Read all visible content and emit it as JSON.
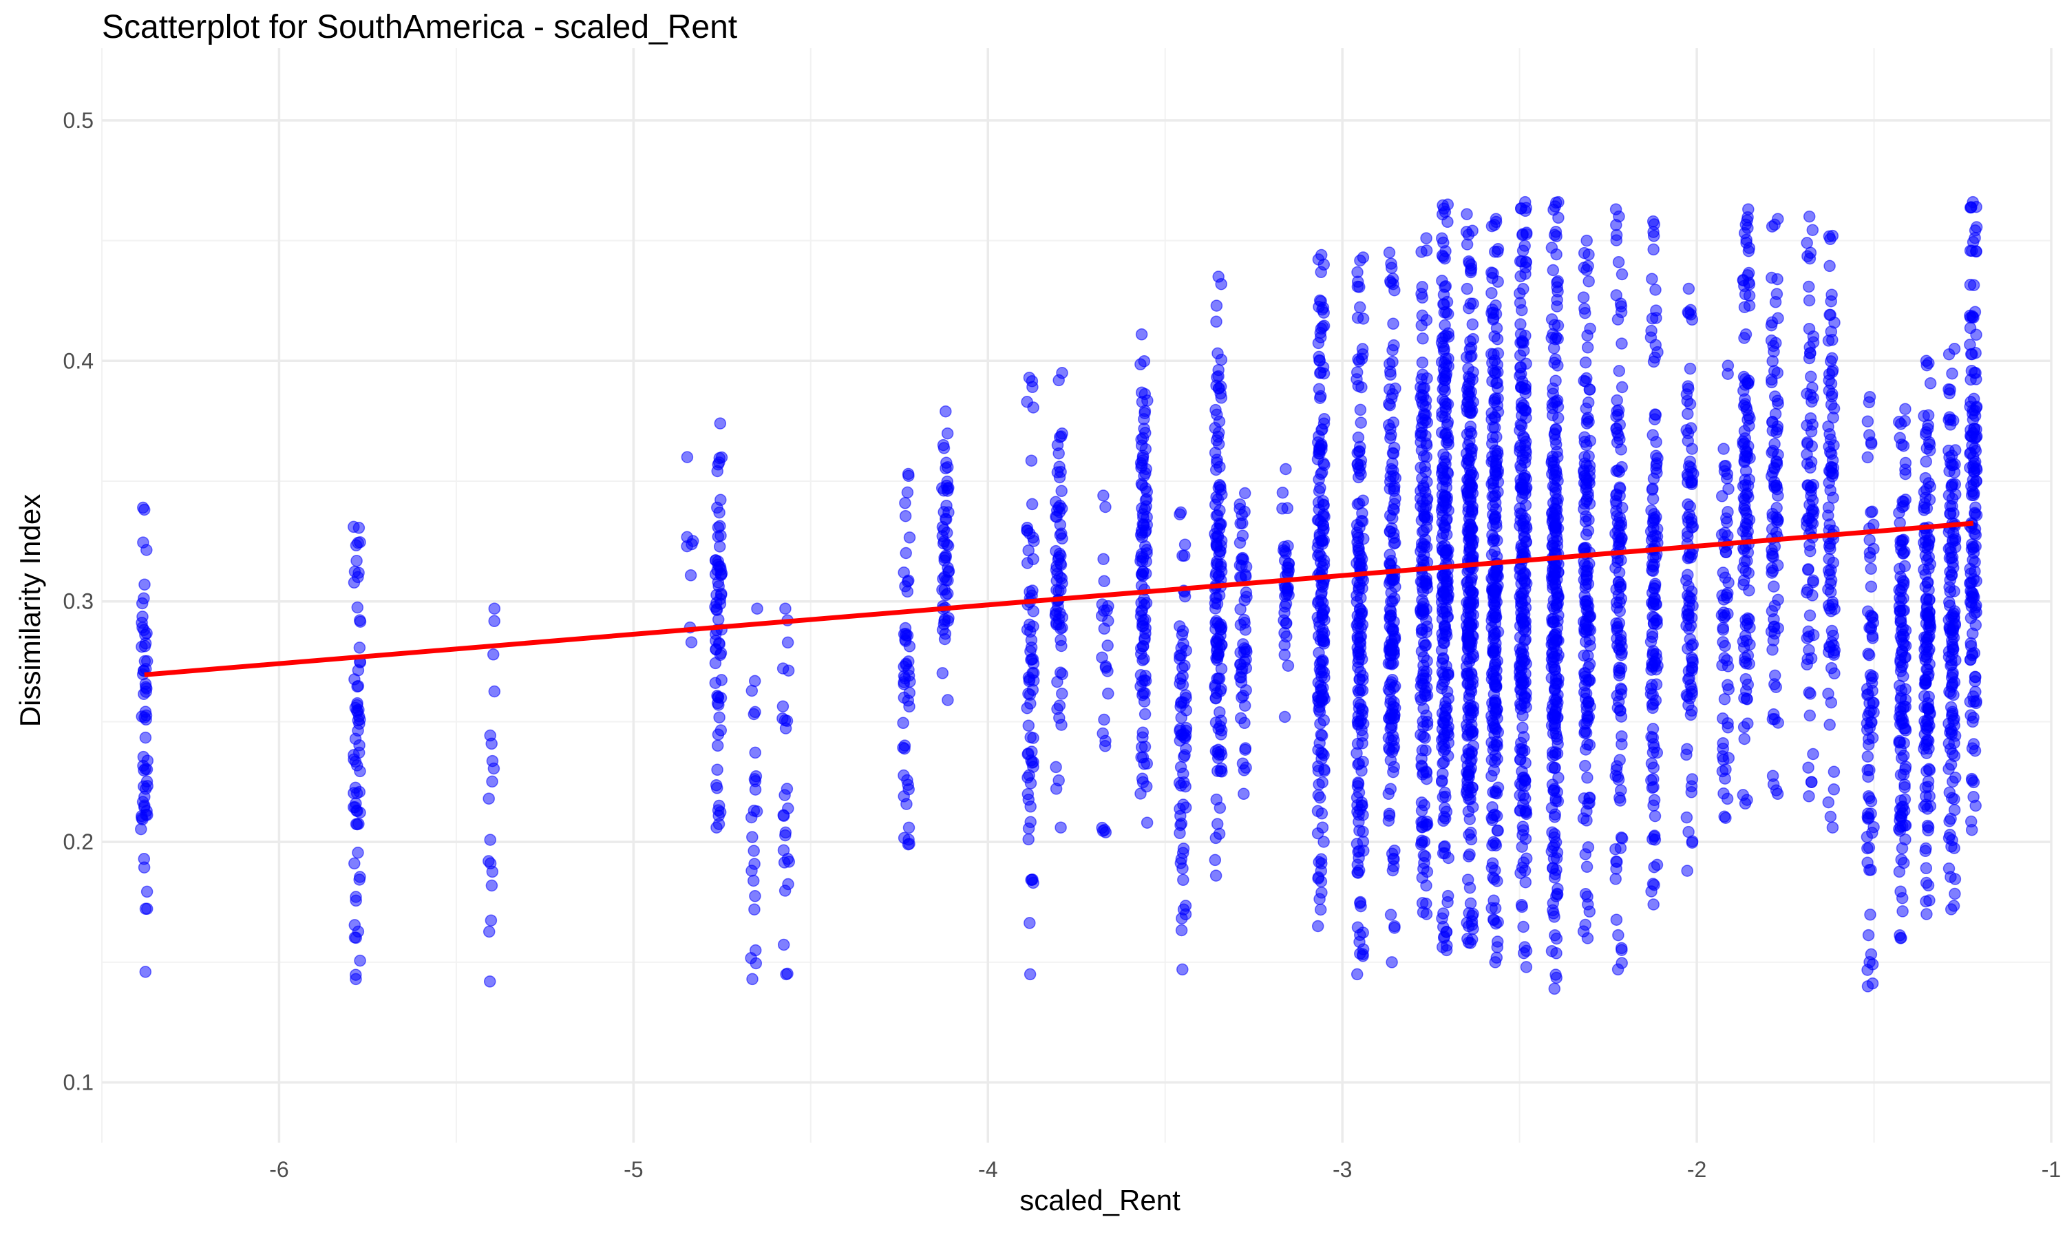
{
  "chart_data": {
    "type": "scatter",
    "title": "Scatterplot for SouthAmerica - scaled_Rent",
    "xlabel": "scaled_Rent",
    "ylabel": "Dissimilarity Index",
    "xlim": [
      -6.5,
      -1.0
    ],
    "ylim": [
      0.075,
      0.53
    ],
    "x_ticks": [
      -6,
      -5,
      -4,
      -3,
      -2,
      -1
    ],
    "x_tick_labels": [
      "-6",
      "-5",
      "-4",
      "-3",
      "-2",
      "-1"
    ],
    "y_ticks": [
      0.1,
      0.2,
      0.3,
      0.4,
      0.5
    ],
    "y_tick_labels": [
      "0.1",
      "0.2",
      "0.3",
      "0.4",
      "0.5"
    ],
    "grid": true,
    "legend": "none",
    "point_color": "#0000ff",
    "point_opacity": 0.5,
    "line_color": "#ff0000",
    "trend_line": {
      "x": [
        -6.38,
        -1.22
      ],
      "y": [
        0.2695,
        0.3325
      ]
    },
    "clusters": [
      {
        "x": -6.38,
        "ymin": 0.146,
        "ymax": 0.339,
        "n": 60
      },
      {
        "x": -5.78,
        "ymin": 0.143,
        "ymax": 0.331,
        "n": 65
      },
      {
        "x": -5.4,
        "ymin": 0.142,
        "ymax": 0.297,
        "n": 18
      },
      {
        "x": -4.84,
        "ymin": 0.283,
        "ymax": 0.36,
        "n": 8
      },
      {
        "x": -4.76,
        "ymin": 0.206,
        "ymax": 0.374,
        "n": 70
      },
      {
        "x": -4.66,
        "ymin": 0.143,
        "ymax": 0.297,
        "n": 24
      },
      {
        "x": -4.57,
        "ymin": 0.145,
        "ymax": 0.297,
        "n": 26
      },
      {
        "x": -4.23,
        "ymin": 0.199,
        "ymax": 0.353,
        "n": 50
      },
      {
        "x": -4.12,
        "ymin": 0.259,
        "ymax": 0.379,
        "n": 55
      },
      {
        "x": -3.88,
        "ymin": 0.145,
        "ymax": 0.393,
        "n": 70
      },
      {
        "x": -3.8,
        "ymin": 0.206,
        "ymax": 0.395,
        "n": 70
      },
      {
        "x": -3.67,
        "ymin": 0.204,
        "ymax": 0.344,
        "n": 25
      },
      {
        "x": -3.56,
        "ymin": 0.208,
        "ymax": 0.411,
        "n": 110
      },
      {
        "x": -3.45,
        "ymin": 0.147,
        "ymax": 0.337,
        "n": 70
      },
      {
        "x": -3.35,
        "ymin": 0.186,
        "ymax": 0.435,
        "n": 140
      },
      {
        "x": -3.28,
        "ymin": 0.22,
        "ymax": 0.345,
        "n": 55
      },
      {
        "x": -3.16,
        "ymin": 0.252,
        "ymax": 0.355,
        "n": 40
      },
      {
        "x": -3.06,
        "ymin": 0.165,
        "ymax": 0.444,
        "n": 180
      },
      {
        "x": -2.95,
        "ymin": 0.145,
        "ymax": 0.443,
        "n": 170
      },
      {
        "x": -2.86,
        "ymin": 0.15,
        "ymax": 0.445,
        "n": 160
      },
      {
        "x": -2.77,
        "ymin": 0.17,
        "ymax": 0.451,
        "n": 180
      },
      {
        "x": -2.71,
        "ymin": 0.155,
        "ymax": 0.465,
        "n": 240
      },
      {
        "x": -2.64,
        "ymin": 0.158,
        "ymax": 0.461,
        "n": 280
      },
      {
        "x": -2.57,
        "ymin": 0.15,
        "ymax": 0.459,
        "n": 240
      },
      {
        "x": -2.49,
        "ymin": 0.148,
        "ymax": 0.466,
        "n": 240
      },
      {
        "x": -2.4,
        "ymin": 0.139,
        "ymax": 0.466,
        "n": 260
      },
      {
        "x": -2.31,
        "ymin": 0.16,
        "ymax": 0.45,
        "n": 160
      },
      {
        "x": -2.22,
        "ymin": 0.147,
        "ymax": 0.463,
        "n": 130
      },
      {
        "x": -2.12,
        "ymin": 0.174,
        "ymax": 0.458,
        "n": 130
      },
      {
        "x": -2.02,
        "ymin": 0.188,
        "ymax": 0.43,
        "n": 100
      },
      {
        "x": -1.92,
        "ymin": 0.21,
        "ymax": 0.398,
        "n": 60
      },
      {
        "x": -1.86,
        "ymin": 0.216,
        "ymax": 0.463,
        "n": 120
      },
      {
        "x": -1.78,
        "ymin": 0.22,
        "ymax": 0.459,
        "n": 90
      },
      {
        "x": -1.68,
        "ymin": 0.219,
        "ymax": 0.46,
        "n": 80
      },
      {
        "x": -1.62,
        "ymin": 0.206,
        "ymax": 0.452,
        "n": 90
      },
      {
        "x": -1.51,
        "ymin": 0.14,
        "ymax": 0.385,
        "n": 80
      },
      {
        "x": -1.42,
        "ymin": 0.16,
        "ymax": 0.38,
        "n": 130
      },
      {
        "x": -1.35,
        "ymin": 0.17,
        "ymax": 0.4,
        "n": 150
      },
      {
        "x": -1.28,
        "ymin": 0.172,
        "ymax": 0.405,
        "n": 140
      },
      {
        "x": -1.22,
        "ymin": 0.205,
        "ymax": 0.466,
        "n": 150
      }
    ]
  }
}
